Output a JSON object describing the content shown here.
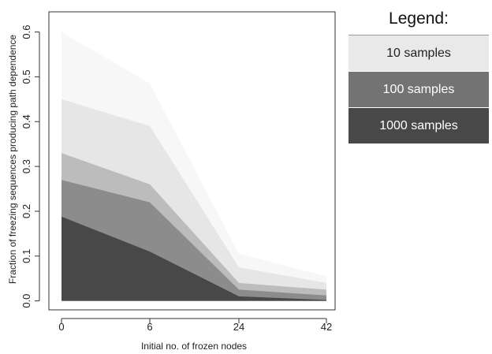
{
  "chart_data": {
    "type": "area",
    "xlabel": "Initial no. of frozen nodes",
    "ylabel": "Fraction of freezing sequences producing path dependence",
    "x_ticks": [
      "0",
      "6",
      "24",
      "42"
    ],
    "y_ticks": [
      "0.0",
      "0.1",
      "0.2",
      "0.3",
      "0.4",
      "0.5",
      "0.6"
    ],
    "ylim": [
      -0.02,
      0.645
    ],
    "grid": false,
    "legend_position": "right",
    "legend": {
      "title": "Legend:",
      "items": [
        {
          "label": "10 samples",
          "color": "#e8e9e8"
        },
        {
          "label": "100 samples",
          "color": "#727372"
        },
        {
          "label": "1000 samples",
          "color": "#474847"
        }
      ]
    },
    "series": [
      {
        "values": [
          0.6,
          0.485,
          0.105,
          0.055
        ]
      },
      {
        "values": [
          0.45,
          0.39,
          0.075,
          0.04
        ]
      },
      {
        "values": [
          0.33,
          0.26,
          0.04,
          0.025
        ]
      },
      {
        "values": [
          0.27,
          0.22,
          0.025,
          0.012
        ]
      },
      {
        "values": [
          0.188,
          0.11,
          0.01,
          0.002
        ]
      }
    ],
    "shades": [
      "#f7f7f7",
      "#e6e6e6",
      "#bcbcbc",
      "#8c8c8c",
      "#474847"
    ]
  }
}
